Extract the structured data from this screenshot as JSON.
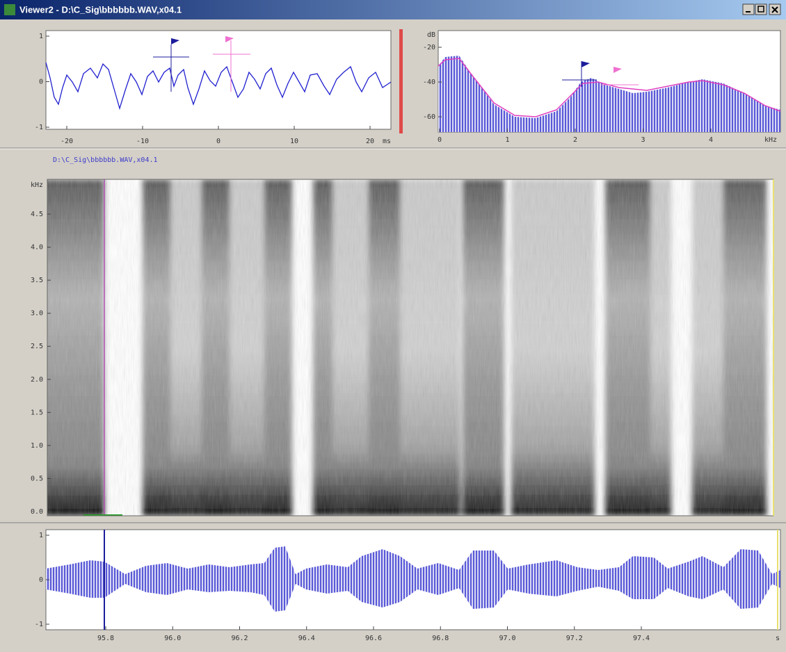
{
  "window": {
    "title": "Viewer2 - D:\\C_Sig\\bbbbbb.WAV,x04.1"
  },
  "waveform_panel": {
    "y_ticks": [
      "1",
      "0",
      "-1"
    ],
    "x_ticks": [
      "-20",
      "-10",
      "0",
      "10",
      "20"
    ],
    "x_unit": "ms"
  },
  "spectrum_panel": {
    "y_unit": "dB",
    "y_ticks": [
      "-20",
      "-40",
      "-60"
    ],
    "x_ticks": [
      "0",
      "1",
      "2",
      "3",
      "4"
    ],
    "x_unit": "kHz"
  },
  "file_label": "D:\\C_Sig\\bbbbbb.WAV,x04.1",
  "spectrogram_panel": {
    "y_unit": "kHz",
    "y_ticks": [
      "4.5",
      "4.0",
      "3.5",
      "3.0",
      "2.5",
      "2.0",
      "1.5",
      "1.0",
      "0.5",
      "0.0"
    ]
  },
  "signal_panel": {
    "y_ticks": [
      "1",
      "0",
      "-1"
    ],
    "x_ticks": [
      "95.8",
      "96.0",
      "96.2",
      "96.4",
      "96.6",
      "96.8",
      "97.0",
      "97.2",
      "97.4"
    ],
    "x_unit": "s"
  }
}
